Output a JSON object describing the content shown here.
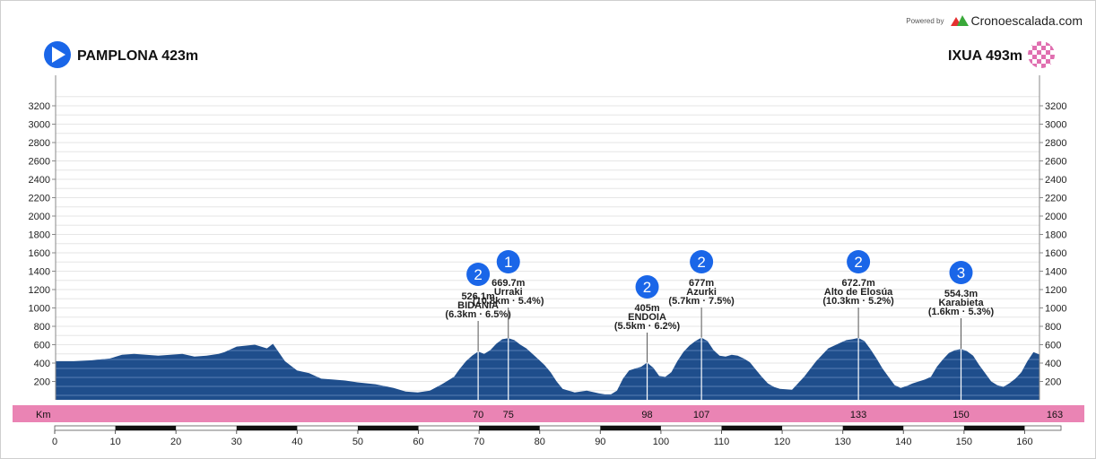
{
  "brand": {
    "powered_by": "Powered by",
    "name": "Cronoescalada.com"
  },
  "route": {
    "start": "PAMPLONA 423m",
    "finish": "IXUA 493m",
    "start_icon": "start-arrow-icon",
    "finish_icon": "finish-checkered-flag-icon"
  },
  "colors": {
    "profile_fill": "#1f4e8c",
    "profile_stripe": "#6f94c6",
    "km_band": "#ea84b4",
    "category_badge": "#1a66e8",
    "gridline": "#e6e6e6"
  },
  "chart_data": {
    "type": "area",
    "title": "",
    "xlabel": "",
    "ylabel": "",
    "xlim": [
      0,
      163
    ],
    "ylim": [
      0,
      3200
    ],
    "y_ticks": [
      200,
      400,
      600,
      800,
      1000,
      1200,
      1400,
      1600,
      1800,
      2000,
      2200,
      2400,
      2600,
      2800,
      3000,
      3200
    ],
    "x_ticks": [
      0,
      10,
      20,
      30,
      40,
      50,
      60,
      70,
      80,
      90,
      100,
      110,
      120,
      130,
      140,
      150,
      160
    ],
    "grid": true,
    "km_band_label": "Km",
    "km_markers": [
      70,
      75,
      98,
      107,
      133,
      150,
      163
    ],
    "elevation_profile": {
      "x": [
        0,
        3,
        6,
        9,
        11,
        13,
        15,
        17,
        19,
        21,
        23,
        25,
        27,
        28,
        30,
        33,
        35,
        36,
        38,
        40,
        42,
        44,
        46,
        48,
        50,
        53,
        56,
        58,
        60,
        62,
        64,
        66,
        67,
        68,
        69,
        70,
        71,
        72,
        73,
        74,
        75,
        76,
        77,
        78,
        79,
        80,
        81,
        82,
        83,
        84,
        86,
        88,
        90,
        91,
        92,
        93,
        94,
        95,
        96,
        97,
        98,
        99,
        100,
        101,
        102,
        103,
        104,
        105,
        106,
        107,
        108,
        109,
        110,
        111,
        112,
        113,
        114,
        115,
        116,
        117,
        118,
        119,
        120,
        122,
        124,
        126,
        128,
        130,
        131,
        132,
        133,
        134,
        135,
        136,
        137,
        138,
        139,
        140,
        141,
        142,
        143,
        144,
        145,
        146,
        147,
        148,
        149,
        150,
        151,
        152,
        153,
        154,
        155,
        156,
        157,
        158,
        159,
        160,
        161,
        162,
        163
      ],
      "y": [
        420,
        420,
        430,
        450,
        490,
        500,
        490,
        480,
        490,
        500,
        470,
        480,
        500,
        520,
        580,
        600,
        560,
        610,
        420,
        320,
        290,
        230,
        220,
        210,
        190,
        170,
        130,
        90,
        80,
        100,
        170,
        250,
        340,
        420,
        480,
        526,
        500,
        540,
        610,
        660,
        670,
        650,
        600,
        560,
        500,
        440,
        380,
        300,
        200,
        120,
        80,
        100,
        70,
        60,
        60,
        100,
        230,
        320,
        340,
        360,
        405,
        350,
        260,
        250,
        300,
        420,
        520,
        590,
        640,
        677,
        640,
        540,
        480,
        470,
        490,
        480,
        450,
        410,
        330,
        250,
        180,
        140,
        120,
        110,
        250,
        420,
        560,
        620,
        650,
        660,
        673,
        640,
        550,
        450,
        340,
        250,
        160,
        130,
        150,
        180,
        200,
        220,
        250,
        360,
        440,
        510,
        540,
        554,
        530,
        480,
        380,
        290,
        200,
        160,
        140,
        180,
        230,
        300,
        420,
        520,
        493
      ]
    },
    "climbs": [
      {
        "km": 70,
        "category": "2",
        "elevation": "526.1m",
        "name": "BIDANIA",
        "detail": "(6.3km · 6.5%)"
      },
      {
        "km": 75,
        "category": "1",
        "elevation": "669.7m",
        "name": "Urraki",
        "detail": "(10.8km · 5.4%)"
      },
      {
        "km": 98,
        "category": "2",
        "elevation": "405m",
        "name": "ENDOIA",
        "detail": "(5.5km · 6.2%)"
      },
      {
        "km": 107,
        "category": "2",
        "elevation": "677m",
        "name": "Azurki",
        "detail": "(5.7km · 7.5%)"
      },
      {
        "km": 133,
        "category": "2",
        "elevation": "672.7m",
        "name": "Alto de Elosúa",
        "detail": "(10.3km · 5.2%)"
      },
      {
        "km": 150,
        "category": "3",
        "elevation": "554.3m",
        "name": "Karabieta",
        "detail": "(1.6km · 5.3%)"
      }
    ]
  }
}
